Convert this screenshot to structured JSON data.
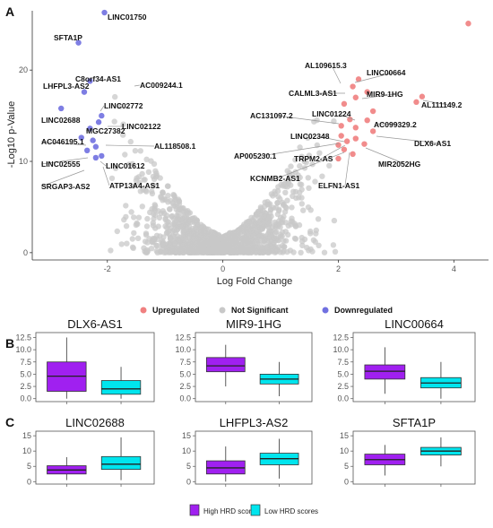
{
  "panels": {
    "a": "A",
    "b": "B",
    "c": "C"
  },
  "colors": {
    "up": "#f08080",
    "ns": "#c8c8c8",
    "down": "#7070e0",
    "high_hrd": "#a020f0",
    "low_hrd": "#00e5ee"
  },
  "chart_data": [
    {
      "type": "scatter",
      "title": "",
      "xlabel": "Log Fold Change",
      "ylabel": "-Log10 p-Value",
      "xlim": [
        -3.3,
        4.6
      ],
      "ylim": [
        -0.8,
        26.5
      ],
      "xticks": [
        -2,
        0,
        2,
        4
      ],
      "yticks": [
        0,
        10,
        20
      ],
      "grid": false,
      "legend_position": "bottom",
      "legend": [
        "Upregulated",
        "Not Significant",
        "Downregulated"
      ],
      "points_down": [
        {
          "x": -2.05,
          "y": 26.3,
          "label": "LINC01750"
        },
        {
          "x": -2.5,
          "y": 23.0,
          "label": "SFTA1P"
        },
        {
          "x": -2.3,
          "y": 18.8,
          "label": "C8orf34-AS1"
        },
        {
          "x": -2.4,
          "y": 17.6,
          "label": "LHFPL3-AS2"
        },
        {
          "x": -2.8,
          "y": 15.8,
          "label": "LINC02688"
        },
        {
          "x": -2.1,
          "y": 15.0
        },
        {
          "x": -2.15,
          "y": 14.3
        },
        {
          "x": -2.3,
          "y": 13.6
        },
        {
          "x": -2.45,
          "y": 12.6
        },
        {
          "x": -2.25,
          "y": 12.3
        },
        {
          "x": -2.2,
          "y": 11.6
        },
        {
          "x": -2.35,
          "y": 11.2
        },
        {
          "x": -2.2,
          "y": 10.4
        },
        {
          "x": -2.1,
          "y": 10.6
        }
      ],
      "points_up": [
        {
          "x": 4.25,
          "y": 25.1
        },
        {
          "x": 2.35,
          "y": 19.0
        },
        {
          "x": 2.25,
          "y": 18.2
        },
        {
          "x": 2.5,
          "y": 17.6
        },
        {
          "x": 2.3,
          "y": 17.0
        },
        {
          "x": 3.45,
          "y": 17.1
        },
        {
          "x": 3.35,
          "y": 16.5
        },
        {
          "x": 2.1,
          "y": 16.3
        },
        {
          "x": 2.6,
          "y": 15.5
        },
        {
          "x": 2.2,
          "y": 14.6
        },
        {
          "x": 2.5,
          "y": 14.5
        },
        {
          "x": 2.05,
          "y": 13.9
        },
        {
          "x": 2.3,
          "y": 13.7
        },
        {
          "x": 2.6,
          "y": 13.3
        },
        {
          "x": 2.05,
          "y": 12.8
        },
        {
          "x": 2.3,
          "y": 12.5
        },
        {
          "x": 2.15,
          "y": 12.2
        },
        {
          "x": 2.0,
          "y": 11.8
        },
        {
          "x": 2.45,
          "y": 11.9
        },
        {
          "x": 2.1,
          "y": 11.3
        },
        {
          "x": 2.25,
          "y": 10.8
        },
        {
          "x": 2.0,
          "y": 10.3
        }
      ],
      "labels_up": [
        "AL109615.3",
        "LINC00664",
        "CALML3-AS1",
        "MIR9-1HG",
        "AL111149.2",
        "AC131097.2",
        "LINC01224",
        "AC099329.2",
        "LINC02348",
        "DLX6-AS1",
        "AP005230.1",
        "TRPM2-AS",
        "MIR2052HG",
        "KCNMB2-AS1",
        "ELFN1-AS1"
      ],
      "labels_down": [
        "AC009244.1",
        "LINC02772",
        "MGC27382",
        "LINC02122",
        "AC046195.1",
        "AL118508.1",
        "LINC02555",
        "LINC01612",
        "SRGAP3-AS2",
        "ATP13A4-AS1"
      ]
    },
    {
      "type": "box",
      "panel": "B",
      "legend": [
        "High HRD scores",
        "Low HRD scores"
      ],
      "facets": [
        {
          "title": "DLX6-AS1",
          "yticks": [
            0.0,
            2.5,
            5.0,
            7.5,
            10.0,
            12.5
          ],
          "ylim": [
            -0.6,
            13.5
          ],
          "high": {
            "min": 0.0,
            "q1": 1.5,
            "median": 4.6,
            "q3": 7.5,
            "max": 12.5
          },
          "low": {
            "min": 0.0,
            "q1": 0.9,
            "median": 2.0,
            "q3": 3.7,
            "max": 6.5
          }
        },
        {
          "title": "MIR9-1HG",
          "yticks": [
            0.0,
            2.5,
            5.0,
            7.5,
            10.0,
            12.5
          ],
          "ylim": [
            -0.6,
            13.5
          ],
          "high": {
            "min": 2.5,
            "q1": 5.5,
            "median": 6.7,
            "q3": 8.4,
            "max": 11.0
          },
          "low": {
            "min": 0.5,
            "q1": 3.0,
            "median": 4.0,
            "q3": 5.0,
            "max": 7.5
          }
        },
        {
          "title": "LINC00664",
          "yticks": [
            0.0,
            2.5,
            5.0,
            7.5,
            10.0,
            12.5
          ],
          "ylim": [
            -0.6,
            13.5
          ],
          "high": {
            "min": 1.0,
            "q1": 4.0,
            "median": 5.6,
            "q3": 6.9,
            "max": 10.5
          },
          "low": {
            "min": 0.0,
            "q1": 2.2,
            "median": 3.2,
            "q3": 4.3,
            "max": 7.5
          }
        }
      ]
    },
    {
      "type": "box",
      "panel": "C",
      "facets": [
        {
          "title": "LINC02688",
          "yticks": [
            0,
            5,
            10,
            15
          ],
          "ylim": [
            -0.8,
            16.5
          ],
          "high": {
            "min": 0.5,
            "q1": 2.5,
            "median": 3.8,
            "q3": 5.2,
            "max": 8.0
          },
          "low": {
            "min": 0.5,
            "q1": 4.0,
            "median": 5.7,
            "q3": 8.2,
            "max": 14.5
          }
        },
        {
          "title": "LHFPL3-AS2",
          "yticks": [
            0,
            5,
            10,
            15
          ],
          "ylim": [
            -0.8,
            16.5
          ],
          "high": {
            "min": 0.0,
            "q1": 2.5,
            "median": 4.5,
            "q3": 6.8,
            "max": 11.5
          },
          "low": {
            "min": 1.0,
            "q1": 5.5,
            "median": 7.5,
            "q3": 9.3,
            "max": 14.0
          }
        },
        {
          "title": "SFTA1P",
          "yticks": [
            0,
            5,
            10,
            15
          ],
          "ylim": [
            -0.8,
            16.5
          ],
          "high": {
            "min": 2.0,
            "q1": 5.5,
            "median": 7.2,
            "q3": 9.0,
            "max": 12.0
          },
          "low": {
            "min": 5.0,
            "q1": 8.7,
            "median": 10.0,
            "q3": 11.2,
            "max": 14.5
          }
        }
      ]
    }
  ]
}
